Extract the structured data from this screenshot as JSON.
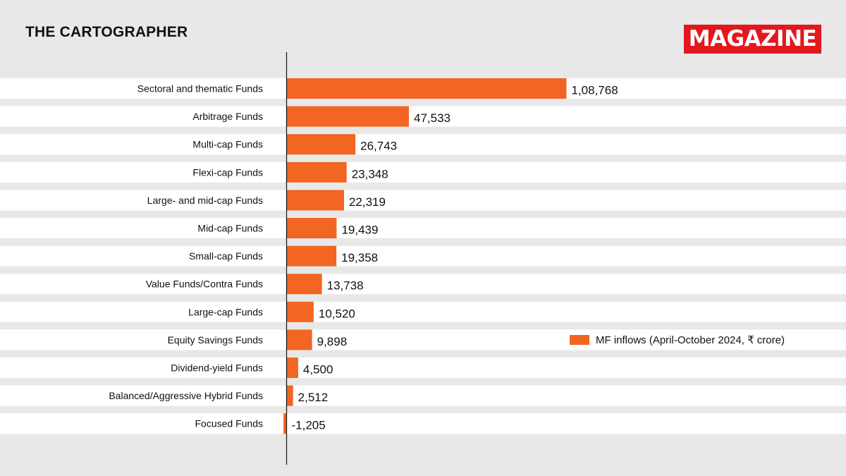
{
  "header": {
    "title": "THE CARTOGRAPHER",
    "badge": "MAGAZINE"
  },
  "colors": {
    "background": "#e8e8e8",
    "stripe": "#ffffff",
    "bar": "#f26522",
    "badge": "#e3171d",
    "text": "#111111"
  },
  "chart_data": {
    "type": "bar",
    "orientation": "horizontal",
    "categories": [
      "Sectoral and thematic Funds",
      "Arbitrage Funds",
      "Multi-cap Funds",
      "Flexi-cap Funds",
      "Large- and mid-cap Funds",
      "Mid-cap Funds",
      "Small-cap Funds",
      "Value Funds/Contra Funds",
      "Large-cap Funds",
      "Equity Savings Funds",
      "Dividend-yield Funds",
      "Balanced/Aggressive Hybrid Funds",
      "Focused Funds"
    ],
    "values": [
      108768,
      47533,
      26743,
      23348,
      22319,
      19439,
      19358,
      13738,
      10520,
      9898,
      4500,
      2512,
      -1205
    ],
    "value_labels": [
      "1,08,768",
      "47,533",
      "26,743",
      "23,348",
      "22,319",
      "19,439",
      "19,358",
      "13,738",
      "10,520",
      "9,898",
      "4,500",
      "2,512",
      "-1,205"
    ],
    "legend": "MF inflows (April-October 2024, ₹ crore)",
    "legend_position": "right",
    "xlim": [
      -1205,
      108768
    ],
    "title": "",
    "xlabel": "",
    "ylabel": ""
  }
}
